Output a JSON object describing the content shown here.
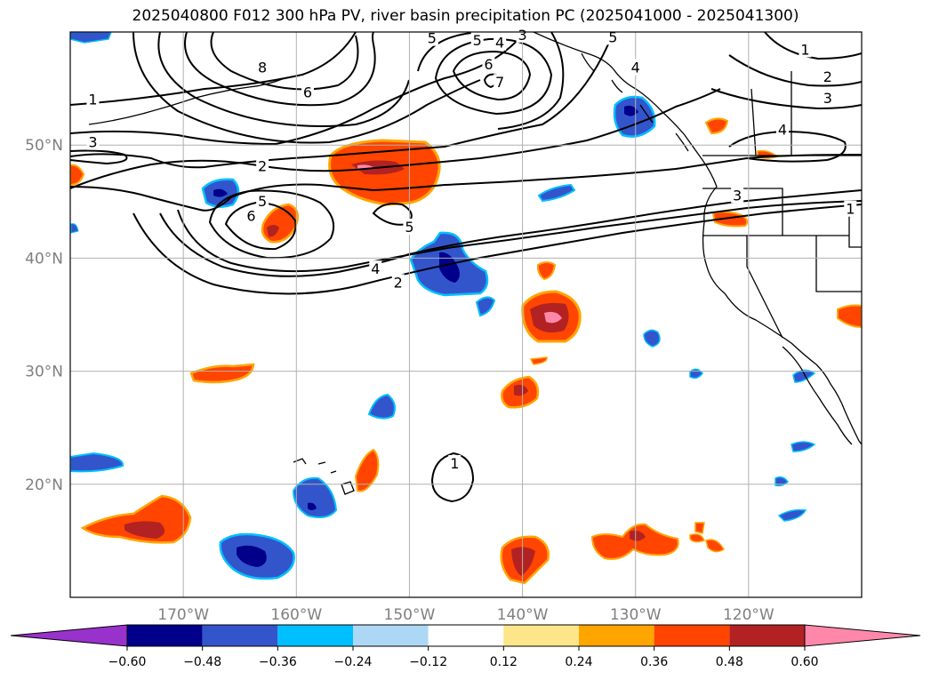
{
  "title": "2025040800 F012 300 hPa PV, river basin precipitation PC (2025041000 - 2025041300)",
  "chart_data": {
    "type": "heatmap",
    "title": "2025040800 F012 300 hPa PV, river basin precipitation PC (2025041000 - 2025041300)",
    "map_extent": {
      "lon": [
        -180,
        -110
      ],
      "lat": [
        10,
        60
      ]
    },
    "lat_ticks": [
      {
        "value": 20,
        "label": "20°N"
      },
      {
        "value": 30,
        "label": "30°N"
      },
      {
        "value": 40,
        "label": "40°N"
      },
      {
        "value": 50,
        "label": "50°N"
      }
    ],
    "lon_ticks": [
      {
        "value": -170,
        "label": "170°W"
      },
      {
        "value": -160,
        "label": "160°W"
      },
      {
        "value": -150,
        "label": "150°W"
      },
      {
        "value": -140,
        "label": "140°W"
      },
      {
        "value": -130,
        "label": "130°W"
      },
      {
        "value": -120,
        "label": "120°W"
      }
    ],
    "grid": true,
    "colorbar": {
      "orientation": "horizontal",
      "extend": "both",
      "bounds": [
        -0.72,
        -0.6,
        -0.48,
        -0.36,
        -0.24,
        -0.12,
        0.12,
        0.24,
        0.36,
        0.48,
        0.6,
        0.72
      ],
      "colors": [
        "#9932cc",
        "#00008b",
        "#3355cc",
        "#00bfff",
        "#add8f5",
        "#ffffff",
        "#fde68a",
        "#ffa500",
        "#ff4500",
        "#b22222",
        "#ff88aa"
      ],
      "tick_values": [
        -0.6,
        -0.48,
        -0.36,
        -0.24,
        -0.12,
        0.12,
        0.24,
        0.36,
        0.48,
        0.6
      ],
      "tick_labels": [
        "−0.60",
        "−0.48",
        "−0.36",
        "−0.24",
        "−0.12",
        "0.12",
        "0.24",
        "0.36",
        "0.48",
        "0.60"
      ]
    },
    "pv_contour_labels": [
      {
        "text": "1",
        "lon": -178,
        "lat": 54.0
      },
      {
        "text": "3",
        "lon": -178,
        "lat": 50.2
      },
      {
        "text": "8",
        "lon": -163,
        "lat": 56.8
      },
      {
        "text": "6",
        "lon": -159,
        "lat": 54.6
      },
      {
        "text": "5",
        "lon": -148,
        "lat": 59.4
      },
      {
        "text": "5",
        "lon": -144,
        "lat": 59.2
      },
      {
        "text": "4",
        "lon": -142,
        "lat": 59.0
      },
      {
        "text": "3",
        "lon": -140,
        "lat": 59.7
      },
      {
        "text": "6",
        "lon": -143,
        "lat": 57.1
      },
      {
        "text": "7",
        "lon": -142,
        "lat": 55.5
      },
      {
        "text": "5",
        "lon": -132,
        "lat": 59.5
      },
      {
        "text": "4",
        "lon": -130,
        "lat": 56.8
      },
      {
        "text": "1",
        "lon": -115,
        "lat": 58.4
      },
      {
        "text": "2",
        "lon": -113,
        "lat": 56.0
      },
      {
        "text": "3",
        "lon": -113,
        "lat": 54.1
      },
      {
        "text": "4",
        "lon": -117,
        "lat": 51.3
      },
      {
        "text": "2",
        "lon": -163,
        "lat": 48.1
      },
      {
        "text": "5",
        "lon": -163,
        "lat": 45.0
      },
      {
        "text": "6",
        "lon": -164,
        "lat": 43.7
      },
      {
        "text": "5",
        "lon": -150,
        "lat": 42.7
      },
      {
        "text": "4",
        "lon": -153,
        "lat": 39.0
      },
      {
        "text": "2",
        "lon": -151,
        "lat": 37.8
      },
      {
        "text": "3",
        "lon": -121,
        "lat": 45.5
      },
      {
        "text": "1",
        "lon": -111,
        "lat": 44.3
      },
      {
        "text": "1",
        "lon": -146,
        "lat": 21.8
      }
    ]
  }
}
